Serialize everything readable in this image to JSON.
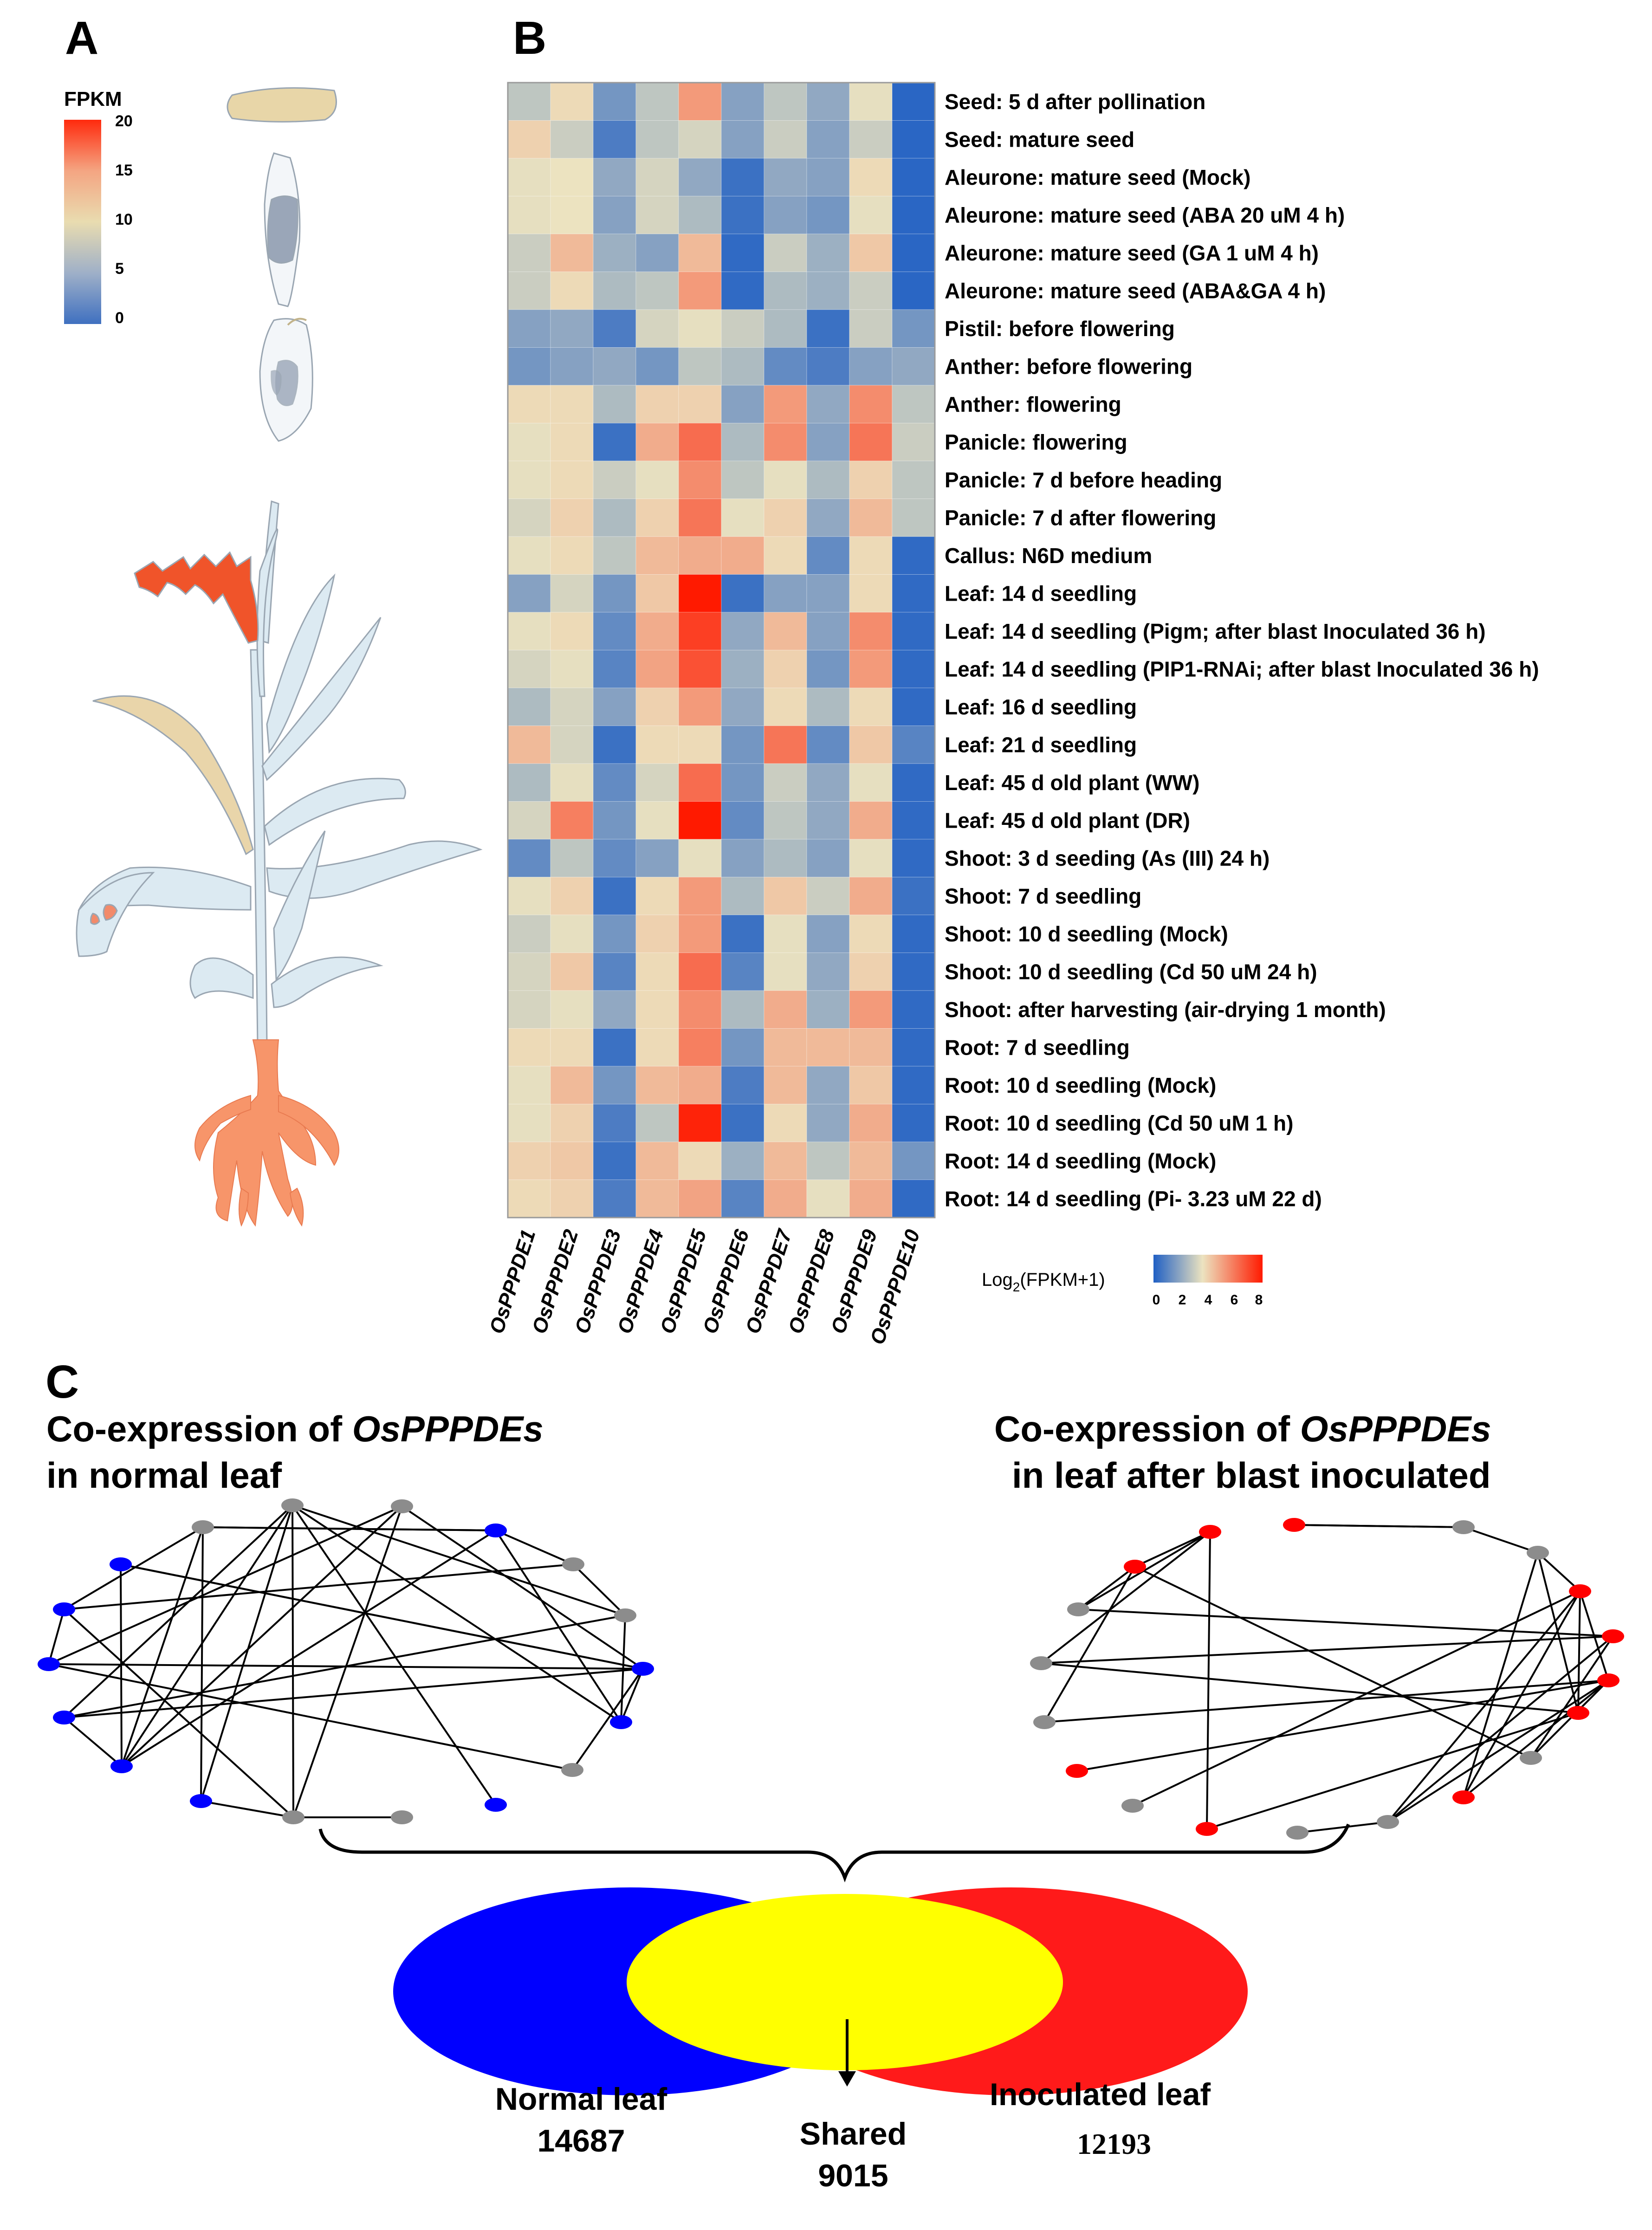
{
  "panel_labels": {
    "a": "A",
    "b": "B",
    "c": "C"
  },
  "panel_a": {
    "legend_title": "FPKM",
    "legend_ticks": [
      "20",
      "15",
      "10",
      "5",
      "0"
    ],
    "legend_colors": [
      "#ff2a0d",
      "#f4a582",
      "#e9dcb0",
      "#9fb0c8",
      "#3f70c0"
    ],
    "tissue_colors": {
      "seed": "#e8d6a8",
      "aleurone": "#9aa6b8",
      "panicle": "#f0542a",
      "flag_leaf": "#e9d5aa",
      "leaf": "#dceaf2",
      "leaf_spot": "#f28a6a",
      "root": "#f7956a",
      "outline": "#9aa6b2"
    }
  },
  "chart_data": {
    "type": "heatmap",
    "title": "",
    "genes": [
      "OsPPPDE1",
      "OsPPPDE2",
      "OsPPPDE3",
      "OsPPPDE4",
      "OsPPPDE5",
      "OsPPPDE6",
      "OsPPPDE7",
      "OsPPPDE8",
      "OsPPPDE9",
      "OsPPPDE10"
    ],
    "conditions": [
      "Seed: 5 d after pollination",
      "Seed: mature seed",
      "Aleurone: mature seed (Mock)",
      "Aleurone: mature seed (ABA 20 uM 4 h)",
      "Aleurone: mature seed (GA 1 uM 4 h)",
      "Aleurone: mature seed (ABA&GA 4 h)",
      "Pistil: before flowering",
      "Anther: before flowering",
      "Anther: flowering",
      "Panicle: flowering",
      "Panicle: 7 d before heading",
      "Panicle: 7 d after flowering",
      "Callus: N6D medium",
      "Leaf: 14 d seedling",
      "Leaf: 14 d seedling (Pigm; after blast Inoculated 36 h)",
      "Leaf: 14 d seedling (PIP1-RNAi; after blast Inoculated 36 h)",
      "Leaf: 16 d seedling",
      "Leaf: 21 d seedling",
      "Leaf: 45 d old plant (WW)",
      "Leaf: 45 d old plant (DR)",
      "Shoot: 3 d seeding (As (III) 24 h)",
      "Shoot: 7 d seedling",
      "Shoot: 10 d seedling (Mock)",
      "Shoot: 10 d seedling (Cd 50 uM 24 h)",
      "Shoot: after harvesting (air-drying 1 month)",
      "Root: 7 d seedling",
      "Root: 10 d seedling (Mock)",
      "Root: 10 d seedling (Cd 50 uM 1 h)",
      "Root: 14 d seedling (Mock)",
      "Root: 14 d seedling (Pi- 3.23 uM 22 d)"
    ],
    "values": [
      [
        2.8,
        3.8,
        1.5,
        2.8,
        5.2,
        1.8,
        2.8,
        2.0,
        3.5,
        0.2
      ],
      [
        4.0,
        3.0,
        0.8,
        2.8,
        3.2,
        1.8,
        3.0,
        1.8,
        3.0,
        0.2
      ],
      [
        3.5,
        3.6,
        2.0,
        3.2,
        2.0,
        0.5,
        2.0,
        1.8,
        3.8,
        0.2
      ],
      [
        3.5,
        3.6,
        1.8,
        3.2,
        2.5,
        0.5,
        1.8,
        1.5,
        3.5,
        0.2
      ],
      [
        3.0,
        4.5,
        2.2,
        1.8,
        4.5,
        0.3,
        3.0,
        2.2,
        4.2,
        0.2
      ],
      [
        3.0,
        3.8,
        2.5,
        2.8,
        5.2,
        0.3,
        2.5,
        2.2,
        3.0,
        0.2
      ],
      [
        1.8,
        2.0,
        0.8,
        3.2,
        3.5,
        3.0,
        2.5,
        0.5,
        3.0,
        1.5
      ],
      [
        1.5,
        1.8,
        2.0,
        1.5,
        2.8,
        2.5,
        1.2,
        0.8,
        1.8,
        2.0
      ],
      [
        3.8,
        3.8,
        2.5,
        4.0,
        4.0,
        1.8,
        5.2,
        2.0,
        5.5,
        2.8
      ],
      [
        3.5,
        3.8,
        0.5,
        4.8,
        6.2,
        2.5,
        5.5,
        1.8,
        6.0,
        3.0
      ],
      [
        3.5,
        3.8,
        3.0,
        3.5,
        5.5,
        2.8,
        3.5,
        2.5,
        4.0,
        2.8
      ],
      [
        3.2,
        4.0,
        2.5,
        4.0,
        6.0,
        3.5,
        4.0,
        2.0,
        4.5,
        2.8
      ],
      [
        3.5,
        3.8,
        2.8,
        4.5,
        4.8,
        4.8,
        3.8,
        1.2,
        3.8,
        0.3
      ],
      [
        1.8,
        3.2,
        1.5,
        4.2,
        8.0,
        0.5,
        1.8,
        1.8,
        3.8,
        0.3
      ],
      [
        3.5,
        3.8,
        1.2,
        4.8,
        7.2,
        2.0,
        4.5,
        1.8,
        5.5,
        0.3
      ],
      [
        3.2,
        3.5,
        1.0,
        5.0,
        6.8,
        2.2,
        4.0,
        1.5,
        5.2,
        0.3
      ],
      [
        2.5,
        3.2,
        1.8,
        4.0,
        5.2,
        2.0,
        3.8,
        2.5,
        3.8,
        0.3
      ],
      [
        4.5,
        3.2,
        0.5,
        3.8,
        3.8,
        1.5,
        6.0,
        1.2,
        4.2,
        1.0
      ],
      [
        2.5,
        3.5,
        1.2,
        3.2,
        6.2,
        1.5,
        3.0,
        2.0,
        3.5,
        0.3
      ],
      [
        3.2,
        5.8,
        1.5,
        3.5,
        8.0,
        1.2,
        2.8,
        2.0,
        4.8,
        0.3
      ],
      [
        1.2,
        2.8,
        1.2,
        1.8,
        3.5,
        1.8,
        2.5,
        1.8,
        3.5,
        0.3
      ],
      [
        3.5,
        4.0,
        0.5,
        3.8,
        5.2,
        2.5,
        4.2,
        3.0,
        4.8,
        0.5
      ],
      [
        3.0,
        3.5,
        1.5,
        4.0,
        5.2,
        0.5,
        3.5,
        1.8,
        3.8,
        0.3
      ],
      [
        3.2,
        4.2,
        1.0,
        3.8,
        6.2,
        1.0,
        3.5,
        2.0,
        4.0,
        0.3
      ],
      [
        3.2,
        3.5,
        2.0,
        3.8,
        5.5,
        2.5,
        4.8,
        2.2,
        5.2,
        0.3
      ],
      [
        3.8,
        3.8,
        0.5,
        3.8,
        5.8,
        1.5,
        4.5,
        4.5,
        4.5,
        0.3
      ],
      [
        3.5,
        4.5,
        1.5,
        4.5,
        4.8,
        0.8,
        4.5,
        2.0,
        4.2,
        0.3
      ],
      [
        3.5,
        4.0,
        0.8,
        2.8,
        7.8,
        0.5,
        3.8,
        2.0,
        4.8,
        0.3
      ],
      [
        4.0,
        4.2,
        0.5,
        4.5,
        3.8,
        2.2,
        4.5,
        2.8,
        4.5,
        1.5
      ],
      [
        3.8,
        4.0,
        0.8,
        4.5,
        5.0,
        1.0,
        4.8,
        3.5,
        4.8,
        0.3
      ]
    ],
    "colorbar": {
      "label_prefix": "Log",
      "label_sub": "2",
      "label_suffix": "(FPKM+1)",
      "ticks": [
        "0",
        "2",
        "4",
        "6",
        "8"
      ],
      "range": [
        0,
        8
      ]
    },
    "colors": {
      "low": "#1f5fc4",
      "mid": "#ece3c0",
      "high": "#ff1a00"
    }
  },
  "panel_c": {
    "left_title_line1_a": "Co-expression of ",
    "left_title_line1_b": "OsPPPDEs",
    "left_title_line2": "in normal leaf",
    "right_title_line1_a": "Co-expression of ",
    "right_title_line1_b": "OsPPPDEs",
    "right_title_line2": "in leaf after blast inoculated",
    "network_colors": {
      "left_highlight": "#0000ff",
      "right_highlight": "#ff0000",
      "other": "#8c8c8c",
      "edge": "#000000"
    },
    "venn": {
      "left_label": "Normal leaf",
      "left_count": "14687",
      "right_label": "Inoculated leaf",
      "right_count": "12193",
      "shared_label": "Shared",
      "shared_count": "9015",
      "colors": {
        "left": "#0000ff",
        "right": "#ff1a1a",
        "overlap": "#ffff00"
      }
    }
  }
}
